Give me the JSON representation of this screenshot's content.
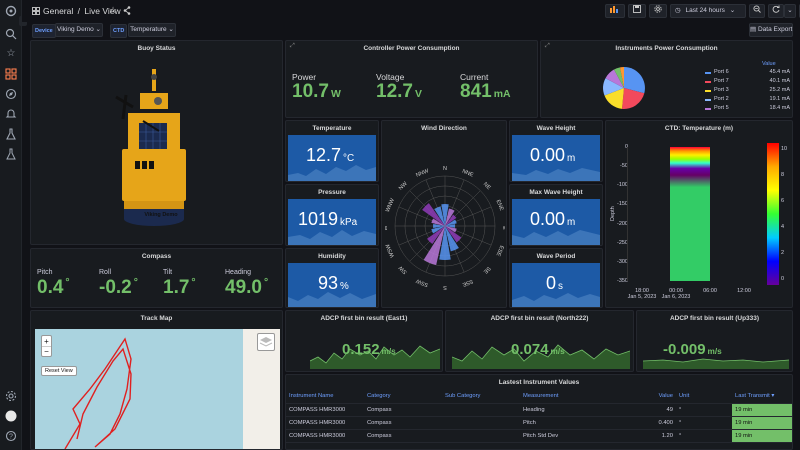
{
  "breadcrumb": {
    "folder": "General",
    "sep": "/",
    "title": "Live View"
  },
  "toolbar": {
    "time_range": "Last 24 hours"
  },
  "vars": [
    {
      "label": "Device",
      "value": "Viking Demo"
    },
    {
      "label": "CTD",
      "value": "Temperature"
    }
  ],
  "data_export": "Data Export",
  "buoy": {
    "title": "Buoy Status",
    "device_label": "Viking Demo"
  },
  "controller": {
    "title": "Controller Power Consumption",
    "stats": [
      {
        "label": "Power",
        "value": "10.7",
        "unit": "W"
      },
      {
        "label": "Voltage",
        "value": "12.7",
        "unit": "V"
      },
      {
        "label": "Current",
        "value": "841",
        "unit": "mA"
      }
    ]
  },
  "instruments_power": {
    "title": "Instruments Power Consumption",
    "legend_header": "Value",
    "legend": [
      {
        "name": "Port 6",
        "value": "45.4 mA",
        "color": "#5794f2"
      },
      {
        "name": "Port 7",
        "value": "40.1 mA",
        "color": "#f2495c"
      },
      {
        "name": "Port 3",
        "value": "25.2 mA",
        "color": "#fade2a"
      },
      {
        "name": "Port 2",
        "value": "19.1 mA",
        "color": "#8ab8ff"
      },
      {
        "name": "Port 5",
        "value": "18.4 mA",
        "color": "#b877d9"
      }
    ]
  },
  "temperature": {
    "title": "Temperature",
    "value": "12.7",
    "unit": "°C"
  },
  "pressure": {
    "title": "Pressure",
    "value": "1019",
    "unit": "kPa"
  },
  "humidity": {
    "title": "Humidity",
    "value": "93",
    "unit": "%"
  },
  "wind": {
    "title": "Wind Direction",
    "dirs": [
      "N",
      "NNE",
      "NE",
      "ENE",
      "E",
      "ESE",
      "SE",
      "SSE",
      "S",
      "SSW",
      "SW",
      "WSW",
      "W",
      "WNW",
      "NW",
      "NNW"
    ]
  },
  "wave_height": {
    "title": "Wave Height",
    "value": "0.00",
    "unit": "m"
  },
  "max_wave_height": {
    "title": "Max Wave Height",
    "value": "0.00",
    "unit": "m"
  },
  "wave_period": {
    "title": "Wave Period",
    "value": "0",
    "unit": "s"
  },
  "ctd": {
    "title": "CTD: Temperature (m)",
    "ylabel": "Depth",
    "y_ticks": [
      "0",
      "-50",
      "-100",
      "-150",
      "-200",
      "-250",
      "-300",
      "-350"
    ],
    "x_ticks": [
      {
        "time": "18:00",
        "date": "Jan 5, 2023"
      },
      {
        "time": "00:00",
        "date": "Jan 6, 2023"
      },
      {
        "time": "06:00",
        "date": ""
      },
      {
        "time": "12:00",
        "date": ""
      }
    ],
    "scale_ticks": [
      "10",
      "8",
      "6",
      "4",
      "2",
      "0"
    ]
  },
  "compass": {
    "title": "Compass",
    "stats": [
      {
        "label": "Pitch",
        "value": "0.4",
        "unit": "°"
      },
      {
        "label": "Roll",
        "value": "-0.2",
        "unit": "°"
      },
      {
        "label": "Tilt",
        "value": "1.7",
        "unit": "°"
      },
      {
        "label": "Heading",
        "value": "49.0",
        "unit": "°"
      }
    ]
  },
  "track_map": {
    "title": "Track Map",
    "zoom_in": "+",
    "zoom_out": "−",
    "reset": "Reset View"
  },
  "adcp": [
    {
      "title": "ADCP first bin result (East1)",
      "value": "0.152",
      "unit": "m/s"
    },
    {
      "title": "ADCP first bin result (North222)",
      "value": "0.074",
      "unit": "m/s"
    },
    {
      "title": "ADCP first bin result (Up333)",
      "value": "-0.009",
      "unit": "m/s"
    }
  ],
  "latest": {
    "title": "Lastest Instrument Values",
    "headers": [
      "Instrument Name",
      "Category",
      "Sub Category",
      "Measurement",
      "Value",
      "Unit",
      "Last Transmit"
    ],
    "rows": [
      [
        "COMPASS HMR3000",
        "Compass",
        "",
        "Heading",
        "49",
        "°",
        "19 min"
      ],
      [
        "COMPASS HMR3000",
        "Compass",
        "",
        "Pitch",
        "0.400",
        "°",
        "19 min"
      ],
      [
        "COMPASS HMR3000",
        "Compass",
        "",
        "Pitch Std Dev",
        "1.20",
        "°",
        "19 min"
      ]
    ]
  }
}
